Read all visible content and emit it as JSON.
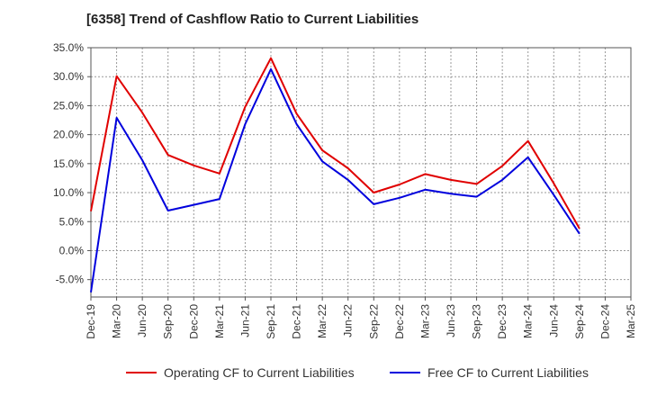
{
  "chart_data": {
    "type": "line",
    "title": "[6358]  Trend of Cashflow Ratio to Current Liabilities",
    "xlabel": "",
    "ylabel": "",
    "ylim": [
      -8,
      35
    ],
    "y_ticks": [
      -5,
      0,
      5,
      10,
      15,
      20,
      25,
      30,
      35
    ],
    "y_tick_labels": [
      "-5.0%",
      "0.0%",
      "5.0%",
      "10.0%",
      "15.0%",
      "20.0%",
      "25.0%",
      "30.0%",
      "35.0%"
    ],
    "categories": [
      "Dec-19",
      "Mar-20",
      "Jun-20",
      "Sep-20",
      "Dec-20",
      "Mar-21",
      "Jun-21",
      "Sep-21",
      "Dec-21",
      "Mar-22",
      "Jun-22",
      "Sep-22",
      "Dec-22",
      "Mar-23",
      "Jun-23",
      "Sep-23",
      "Dec-23",
      "Mar-24",
      "Jun-24",
      "Sep-24",
      "Dec-24",
      "Mar-25"
    ],
    "grid": true,
    "legend_position": "bottom",
    "series": [
      {
        "name": "Operating CF to Current Liabilities",
        "color": "#e00000",
        "values": [
          6.8,
          30.1,
          23.8,
          16.5,
          14.7,
          13.3,
          24.8,
          33.2,
          23.6,
          17.3,
          14.2,
          10.0,
          11.4,
          13.2,
          12.2,
          11.5,
          14.6,
          18.9,
          11.6,
          3.8,
          null,
          null
        ]
      },
      {
        "name": "Free CF to Current Liabilities",
        "color": "#0000dd",
        "values": [
          -7.2,
          22.9,
          15.6,
          6.9,
          7.9,
          8.9,
          21.8,
          31.3,
          21.8,
          15.4,
          12.2,
          8.0,
          9.1,
          10.5,
          9.8,
          9.3,
          12.2,
          16.1,
          9.6,
          2.9,
          null,
          null
        ]
      }
    ]
  }
}
